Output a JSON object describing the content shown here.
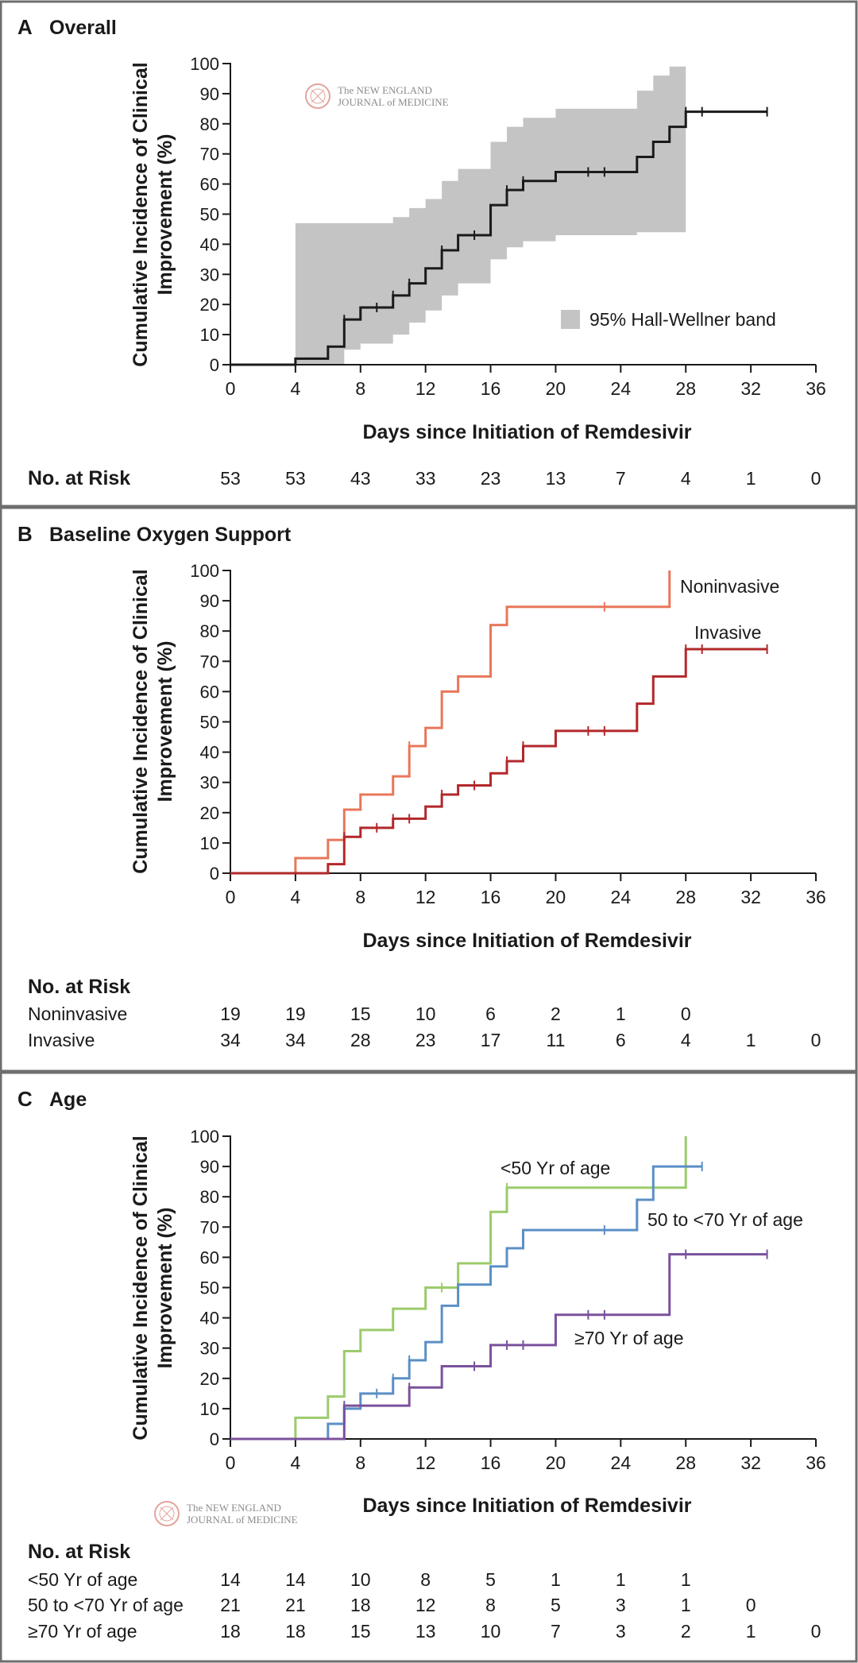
{
  "logo": {
    "line1": "The NEW ENGLAND",
    "line2": "JOURNAL of MEDICINE"
  },
  "x_axis": {
    "label": "Days since Initiation of Remdesivir",
    "ticks": [
      0,
      4,
      8,
      12,
      16,
      20,
      24,
      28,
      32,
      36
    ],
    "range": [
      0,
      36
    ]
  },
  "y_axis": {
    "label_line1": "Cumulative Incidence of Clinical",
    "label_line2": "Improvement (%)",
    "ticks": [
      0,
      10,
      20,
      30,
      40,
      50,
      60,
      70,
      80,
      90,
      100
    ],
    "range": [
      0,
      100
    ]
  },
  "risk_heading": "No. at Risk",
  "colors": {
    "overall": "#1a1a1a",
    "band": "#c4c4c4",
    "noninvasive": "#e8775a",
    "invasive": "#b2282b",
    "age_lt50": "#9bcb6b",
    "age_50_70": "#5b8fc5",
    "age_ge70": "#7b519d"
  },
  "chart_data": [
    {
      "type": "line",
      "step": true,
      "panel": "A",
      "title": "Overall",
      "legend": {
        "label": "95% Hall-Wellner band",
        "placement": "bottom-right"
      },
      "series": [
        {
          "name": "Overall",
          "key": "overall",
          "x": [
            0,
            4,
            6,
            7,
            8,
            10,
            11,
            12,
            13,
            14,
            16,
            17,
            18,
            20,
            25,
            26,
            27,
            28,
            33
          ],
          "y": [
            0,
            2,
            6,
            15,
            19,
            23,
            27,
            32,
            38,
            43,
            53,
            58,
            61,
            64,
            69,
            74,
            79,
            84,
            84
          ],
          "censored": [
            [
              7,
              15
            ],
            [
              9,
              19
            ],
            [
              10,
              23
            ],
            [
              11,
              27
            ],
            [
              13,
              38
            ],
            [
              15,
              43
            ],
            [
              17,
              58
            ],
            [
              18,
              61
            ],
            [
              22,
              64
            ],
            [
              23,
              64
            ],
            [
              28,
              84
            ],
            [
              29,
              84
            ],
            [
              33,
              84
            ]
          ]
        }
      ],
      "band": {
        "x": [
          4,
          6,
          7,
          8,
          10,
          11,
          12,
          13,
          14,
          16,
          17,
          18,
          20,
          25,
          26,
          27,
          28
        ],
        "upper": [
          47,
          47,
          47,
          47,
          49,
          52,
          55,
          61,
          65,
          74,
          79,
          82,
          85,
          91,
          96,
          99,
          99
        ],
        "lower": [
          0,
          0,
          5,
          7,
          10,
          14,
          18,
          23,
          27,
          35,
          39,
          41,
          43,
          44,
          44,
          44,
          44
        ]
      },
      "risk_table": {
        "x": [
          0,
          4,
          8,
          12,
          16,
          20,
          24,
          28,
          32,
          36
        ],
        "rows": [
          {
            "label": "No. at Risk",
            "values": [
              "53",
              "53",
              "43",
              "33",
              "23",
              "13",
              "7",
              "4",
              "1",
              "0"
            ]
          }
        ]
      }
    },
    {
      "type": "line",
      "step": true,
      "panel": "B",
      "title": "Baseline Oxygen Support",
      "series": [
        {
          "name": "Noninvasive",
          "key": "noninvasive",
          "x": [
            0,
            4,
            6,
            7,
            8,
            10,
            11,
            12,
            13,
            14,
            16,
            17,
            27
          ],
          "y": [
            0,
            5,
            11,
            21,
            26,
            32,
            42,
            48,
            60,
            65,
            82,
            88,
            100
          ],
          "censored": [
            [
              11,
              42
            ],
            [
              23,
              88
            ]
          ]
        },
        {
          "name": "Invasive",
          "key": "invasive",
          "x": [
            0,
            6,
            7,
            8,
            10,
            12,
            13,
            14,
            16,
            17,
            18,
            20,
            25,
            26,
            28,
            33
          ],
          "y": [
            0,
            3,
            12,
            15,
            18,
            22,
            26,
            29,
            33,
            37,
            42,
            47,
            56,
            65,
            74,
            74
          ],
          "censored": [
            [
              7,
              12
            ],
            [
              9,
              15
            ],
            [
              10,
              18
            ],
            [
              11,
              18
            ],
            [
              13,
              26
            ],
            [
              15,
              29
            ],
            [
              17,
              37
            ],
            [
              18,
              42
            ],
            [
              22,
              47
            ],
            [
              23,
              47
            ],
            [
              28,
              74
            ],
            [
              29,
              74
            ],
            [
              33,
              74
            ]
          ]
        }
      ],
      "risk_table": {
        "x": [
          0,
          4,
          8,
          12,
          16,
          20,
          24,
          28,
          32,
          36
        ],
        "rows": [
          {
            "label": "Noninvasive",
            "values": [
              "19",
              "19",
              "15",
              "10",
              "6",
              "2",
              "1",
              "0",
              "",
              ""
            ]
          },
          {
            "label": "Invasive",
            "values": [
              "34",
              "34",
              "28",
              "23",
              "17",
              "11",
              "6",
              "4",
              "1",
              "0"
            ]
          }
        ]
      }
    },
    {
      "type": "line",
      "step": true,
      "panel": "C",
      "title": "Age",
      "series": [
        {
          "name": "<50 Yr of age",
          "key": "age_lt50",
          "x": [
            0,
            4,
            6,
            7,
            8,
            10,
            12,
            14,
            16,
            17,
            28
          ],
          "y": [
            0,
            7,
            14,
            29,
            36,
            43,
            50,
            58,
            75,
            83,
            100
          ],
          "censored": [
            [
              13,
              50
            ],
            [
              17,
              83
            ]
          ]
        },
        {
          "name": "50 to <70 Yr of age",
          "key": "age_50_70",
          "x": [
            0,
            6,
            7,
            8,
            10,
            11,
            12,
            13,
            14,
            16,
            17,
            18,
            25,
            26,
            29
          ],
          "y": [
            0,
            5,
            10,
            15,
            20,
            26,
            32,
            44,
            51,
            57,
            63,
            69,
            79,
            90,
            90
          ],
          "censored": [
            [
              7,
              10
            ],
            [
              9,
              15
            ],
            [
              10,
              20
            ],
            [
              11,
              26
            ],
            [
              23,
              69
            ],
            [
              29,
              90
            ]
          ]
        },
        {
          "name": "≥70 Yr of age",
          "key": "age_ge70",
          "x": [
            0,
            7,
            11,
            13,
            16,
            20,
            27,
            33
          ],
          "y": [
            0,
            11,
            17,
            24,
            31,
            41,
            61,
            61
          ],
          "censored": [
            [
              7,
              11
            ],
            [
              11,
              17
            ],
            [
              15,
              24
            ],
            [
              17,
              31
            ],
            [
              18,
              31
            ],
            [
              22,
              41
            ],
            [
              23,
              41
            ],
            [
              28,
              61
            ],
            [
              33,
              61
            ]
          ]
        }
      ],
      "risk_table": {
        "x": [
          0,
          4,
          8,
          12,
          16,
          20,
          24,
          28,
          32,
          36
        ],
        "rows": [
          {
            "label": "<50 Yr of age",
            "values": [
              "14",
              "14",
              "10",
              "8",
              "5",
              "1",
              "1",
              "1",
              "",
              ""
            ]
          },
          {
            "label": "50 to <70 Yr of age",
            "values": [
              "21",
              "21",
              "18",
              "12",
              "8",
              "5",
              "3",
              "1",
              "0",
              ""
            ]
          },
          {
            "label": "≥70 Yr of age",
            "values": [
              "18",
              "18",
              "15",
              "13",
              "10",
              "7",
              "3",
              "2",
              "1",
              "0"
            ]
          }
        ]
      }
    }
  ]
}
